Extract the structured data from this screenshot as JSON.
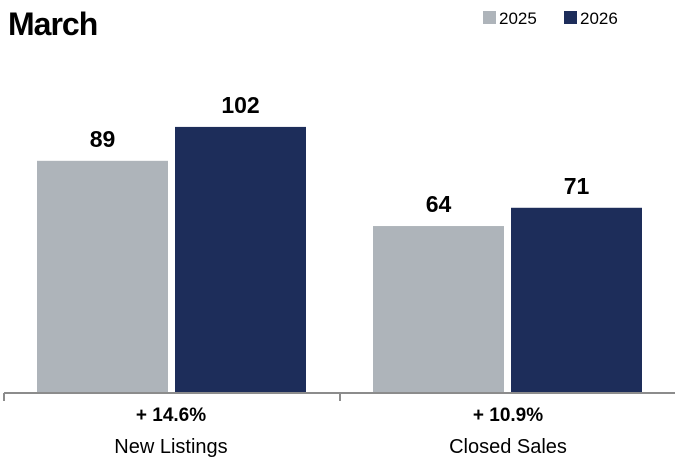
{
  "chart_data": {
    "type": "bar",
    "title": "March",
    "categories": [
      "New Listings",
      "Closed Sales"
    ],
    "change_labels": [
      "+ 14.6%",
      "+ 10.9%"
    ],
    "series": [
      {
        "name": "2025",
        "values": [
          89,
          64
        ],
        "color": "#aeb4ba"
      },
      {
        "name": "2026",
        "values": [
          102,
          71
        ],
        "color": "#1d2d5a"
      }
    ],
    "ylim": [
      0,
      115
    ],
    "legend_position": "top-right",
    "grid": false,
    "axis_color": "#8c8c8c"
  }
}
